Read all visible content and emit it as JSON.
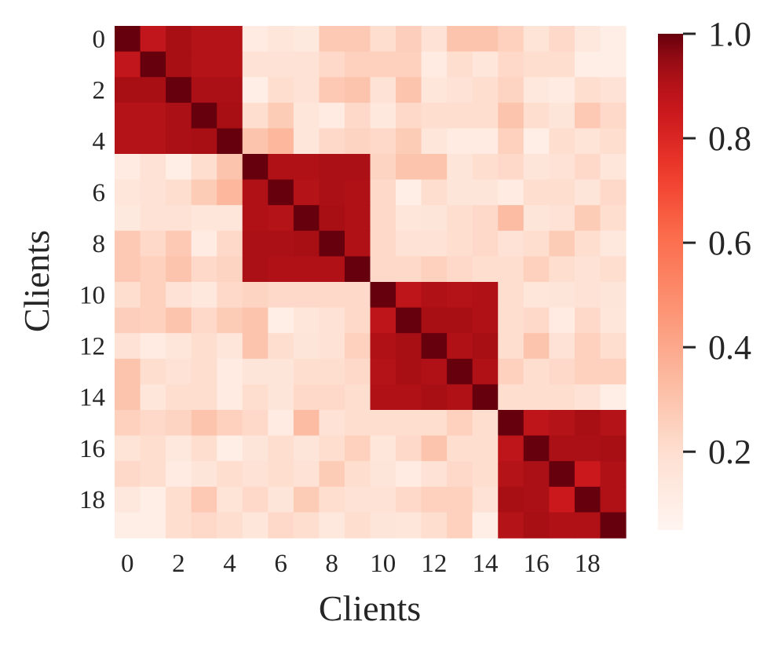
{
  "chart_data": {
    "type": "heatmap",
    "title": "",
    "xlabel": "Clients",
    "ylabel": "Clients",
    "x_tick_labels": [
      "0",
      "2",
      "4",
      "6",
      "8",
      "10",
      "12",
      "14",
      "16",
      "18"
    ],
    "y_tick_labels": [
      "0",
      "2",
      "4",
      "6",
      "8",
      "10",
      "12",
      "14",
      "16",
      "18"
    ],
    "n_clients": 20,
    "colormap": "Reds",
    "colorbar": {
      "range": [
        0.05,
        1.0
      ],
      "ticks": [
        0.2,
        0.4,
        0.6,
        0.8,
        1.0
      ],
      "tick_labels": [
        "0.2",
        "0.4",
        "0.6",
        "0.8",
        "1.0"
      ],
      "placement": "right"
    },
    "clusters": [
      {
        "clients": [
          0,
          1,
          2,
          3,
          4
        ]
      },
      {
        "clients": [
          5,
          6,
          7,
          8,
          9
        ]
      },
      {
        "clients": [
          10,
          11,
          12,
          13,
          14
        ]
      },
      {
        "clients": [
          15,
          16,
          17,
          18,
          19
        ]
      }
    ],
    "matrix": [
      [
        1.0,
        0.87,
        0.93,
        0.9,
        0.9,
        0.12,
        0.15,
        0.13,
        0.28,
        0.28,
        0.2,
        0.26,
        0.18,
        0.3,
        0.3,
        0.25,
        0.17,
        0.22,
        0.14,
        0.1
      ],
      [
        0.87,
        1.0,
        0.93,
        0.9,
        0.9,
        0.18,
        0.18,
        0.18,
        0.22,
        0.25,
        0.25,
        0.25,
        0.12,
        0.2,
        0.15,
        0.22,
        0.2,
        0.2,
        0.1,
        0.1
      ],
      [
        0.93,
        0.93,
        1.0,
        0.92,
        0.92,
        0.1,
        0.2,
        0.18,
        0.28,
        0.3,
        0.18,
        0.3,
        0.15,
        0.18,
        0.2,
        0.24,
        0.14,
        0.12,
        0.2,
        0.18
      ],
      [
        0.9,
        0.9,
        0.92,
        1.0,
        0.93,
        0.2,
        0.27,
        0.15,
        0.12,
        0.22,
        0.14,
        0.22,
        0.2,
        0.2,
        0.2,
        0.3,
        0.2,
        0.16,
        0.28,
        0.22
      ],
      [
        0.9,
        0.9,
        0.92,
        0.93,
        1.0,
        0.3,
        0.35,
        0.15,
        0.22,
        0.24,
        0.22,
        0.27,
        0.15,
        0.12,
        0.12,
        0.25,
        0.1,
        0.2,
        0.17,
        0.2
      ],
      [
        0.12,
        0.18,
        0.1,
        0.2,
        0.3,
        1.0,
        0.91,
        0.91,
        0.92,
        0.92,
        0.24,
        0.3,
        0.3,
        0.16,
        0.2,
        0.22,
        0.16,
        0.18,
        0.22,
        0.15
      ],
      [
        0.15,
        0.18,
        0.2,
        0.27,
        0.35,
        0.91,
        1.0,
        0.9,
        0.92,
        0.91,
        0.22,
        0.1,
        0.2,
        0.16,
        0.16,
        0.12,
        0.2,
        0.2,
        0.16,
        0.22
      ],
      [
        0.13,
        0.18,
        0.18,
        0.15,
        0.15,
        0.91,
        0.9,
        1.0,
        0.93,
        0.91,
        0.22,
        0.15,
        0.16,
        0.2,
        0.22,
        0.33,
        0.16,
        0.18,
        0.27,
        0.2
      ],
      [
        0.28,
        0.22,
        0.28,
        0.12,
        0.22,
        0.92,
        0.92,
        0.93,
        1.0,
        0.91,
        0.22,
        0.18,
        0.18,
        0.2,
        0.22,
        0.18,
        0.2,
        0.27,
        0.2,
        0.14
      ],
      [
        0.28,
        0.25,
        0.3,
        0.22,
        0.24,
        0.92,
        0.91,
        0.91,
        0.91,
        1.0,
        0.22,
        0.22,
        0.25,
        0.22,
        0.2,
        0.2,
        0.25,
        0.2,
        0.18,
        0.2
      ],
      [
        0.2,
        0.25,
        0.18,
        0.14,
        0.22,
        0.24,
        0.22,
        0.22,
        0.22,
        0.22,
        1.0,
        0.88,
        0.91,
        0.9,
        0.91,
        0.2,
        0.15,
        0.16,
        0.18,
        0.16
      ],
      [
        0.26,
        0.25,
        0.3,
        0.22,
        0.27,
        0.3,
        0.1,
        0.15,
        0.18,
        0.22,
        0.88,
        1.0,
        0.93,
        0.93,
        0.91,
        0.2,
        0.22,
        0.12,
        0.22,
        0.15
      ],
      [
        0.18,
        0.12,
        0.15,
        0.2,
        0.15,
        0.3,
        0.2,
        0.16,
        0.18,
        0.25,
        0.91,
        0.93,
        1.0,
        0.91,
        0.93,
        0.2,
        0.3,
        0.18,
        0.25,
        0.2
      ],
      [
        0.3,
        0.2,
        0.18,
        0.2,
        0.12,
        0.16,
        0.16,
        0.2,
        0.2,
        0.22,
        0.9,
        0.93,
        0.91,
        1.0,
        0.91,
        0.25,
        0.2,
        0.22,
        0.25,
        0.25
      ],
      [
        0.3,
        0.15,
        0.2,
        0.2,
        0.12,
        0.2,
        0.16,
        0.22,
        0.22,
        0.2,
        0.91,
        0.91,
        0.93,
        0.91,
        1.0,
        0.2,
        0.2,
        0.2,
        0.18,
        0.1
      ],
      [
        0.25,
        0.22,
        0.24,
        0.3,
        0.25,
        0.22,
        0.12,
        0.33,
        0.18,
        0.2,
        0.2,
        0.2,
        0.2,
        0.25,
        0.2,
        1.0,
        0.88,
        0.9,
        0.93,
        0.9
      ],
      [
        0.17,
        0.2,
        0.14,
        0.2,
        0.1,
        0.16,
        0.2,
        0.16,
        0.2,
        0.25,
        0.15,
        0.22,
        0.3,
        0.2,
        0.2,
        0.88,
        1.0,
        0.92,
        0.92,
        0.93
      ],
      [
        0.22,
        0.2,
        0.12,
        0.16,
        0.2,
        0.18,
        0.2,
        0.18,
        0.27,
        0.2,
        0.16,
        0.12,
        0.18,
        0.22,
        0.2,
        0.9,
        0.92,
        1.0,
        0.85,
        0.91
      ],
      [
        0.14,
        0.1,
        0.2,
        0.28,
        0.17,
        0.22,
        0.16,
        0.27,
        0.2,
        0.18,
        0.18,
        0.22,
        0.25,
        0.25,
        0.18,
        0.93,
        0.92,
        0.85,
        1.0,
        0.91
      ],
      [
        0.1,
        0.1,
        0.2,
        0.22,
        0.2,
        0.15,
        0.22,
        0.2,
        0.14,
        0.2,
        0.16,
        0.15,
        0.2,
        0.25,
        0.1,
        0.9,
        0.93,
        0.91,
        0.91,
        1.0
      ]
    ]
  }
}
